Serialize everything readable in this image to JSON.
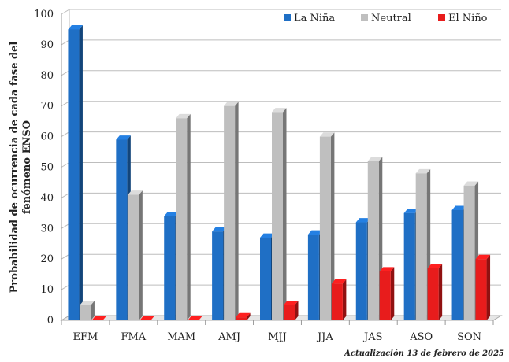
{
  "chart_data": {
    "type": "bar",
    "ylabel": "Probabilidad de ocurrencia de cada fase del fenómeno ENSO",
    "ylim": [
      0,
      100
    ],
    "y_ticks": [
      0,
      10,
      20,
      30,
      40,
      50,
      60,
      70,
      80,
      90,
      100
    ],
    "categories": [
      "EFM",
      "FMA",
      "MAM",
      "AMJ",
      "MJJ",
      "JJA",
      "JAS",
      "ASO",
      "SON"
    ],
    "series": [
      {
        "name": "La Niña",
        "color": "#1f6fc5",
        "values": [
          95,
          59,
          34,
          29,
          27,
          28,
          32,
          35,
          36
        ]
      },
      {
        "name": "Neutral",
        "color": "#bfbfbf",
        "values": [
          5,
          41,
          66,
          70,
          68,
          60,
          52,
          48,
          44
        ]
      },
      {
        "name": "El Niño",
        "color": "#e81c1c",
        "values": [
          0,
          0,
          0,
          1,
          5,
          12,
          16,
          17,
          20
        ]
      }
    ],
    "legend_position": "top-right",
    "grid": true,
    "footnote": "Actualización 13 de febrero de 2025"
  }
}
